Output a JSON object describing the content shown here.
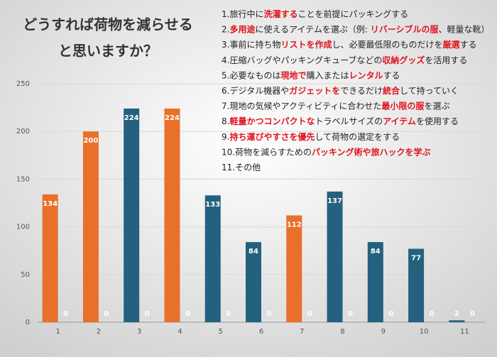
{
  "chart_data": {
    "type": "bar",
    "title": [
      "どうすれば荷物を減らせる",
      "と思いますか？"
    ],
    "categories": [
      "1",
      "2",
      "3",
      "4",
      "5",
      "6",
      "7",
      "8",
      "9",
      "10",
      "11"
    ],
    "series": [
      {
        "values": [
          134,
          200,
          224,
          224,
          133,
          84,
          112,
          137,
          84,
          77,
          2
        ],
        "colors": [
          "#e8702a",
          "#e8702a",
          "#24617f",
          "#e8702a",
          "#24617f",
          "#24617f",
          "#e8702a",
          "#24617f",
          "#24617f",
          "#24617f",
          "#24617f"
        ]
      },
      {
        "values": [
          0,
          0,
          0,
          0,
          0,
          0,
          0,
          0,
          0,
          0,
          0
        ],
        "color": "#24617f"
      }
    ],
    "ylim": [
      0,
      250
    ],
    "yticks": [
      0,
      50,
      100,
      150,
      200,
      250
    ],
    "grid": true,
    "highlight_color": "#e0141e",
    "options": [
      [
        {
          "text": "1.旅行中に"
        },
        {
          "text": "洗濯する",
          "highlight": true
        },
        {
          "text": "ことを前提にパッキングする"
        }
      ],
      [
        {
          "text": "2."
        },
        {
          "text": "多用途",
          "highlight": true
        },
        {
          "text": "に使えるアイテムを選ぶ（例: "
        },
        {
          "text": "リバーシブルの服",
          "highlight": true
        },
        {
          "text": "、軽量な靴）"
        }
      ],
      [
        {
          "text": "3.事前に持ち物"
        },
        {
          "text": "リストを作成",
          "highlight": true
        },
        {
          "text": "し、必要最低限のものだけを"
        },
        {
          "text": "厳選",
          "highlight": true
        },
        {
          "text": "する"
        }
      ],
      [
        {
          "text": "4.圧縮バッグやパッキングキューブなどの"
        },
        {
          "text": "収納グッズ",
          "highlight": true
        },
        {
          "text": "を活用する"
        }
      ],
      [
        {
          "text": "5.必要なものは"
        },
        {
          "text": "現地で",
          "highlight": true
        },
        {
          "text": "購入または"
        },
        {
          "text": "レンタル",
          "highlight": true
        },
        {
          "text": "する"
        }
      ],
      [
        {
          "text": "6.デジタル機器や"
        },
        {
          "text": "ガジェットを",
          "highlight": true
        },
        {
          "text": "できるだけ"
        },
        {
          "text": "統合",
          "highlight": true
        },
        {
          "text": "して持っていく"
        }
      ],
      [
        {
          "text": "7.現地の気候やアクティビティに合わせた"
        },
        {
          "text": "最小限の服",
          "highlight": true
        },
        {
          "text": "を選ぶ"
        }
      ],
      [
        {
          "text": "8."
        },
        {
          "text": "軽量かつコンパクトな",
          "highlight": true
        },
        {
          "text": "トラベルサイズの"
        },
        {
          "text": "アイテム",
          "highlight": true
        },
        {
          "text": "を使用する"
        }
      ],
      [
        {
          "text": "9."
        },
        {
          "text": "持ち運びやすさを優先",
          "highlight": true
        },
        {
          "text": "して荷物の選定をする"
        }
      ],
      [
        {
          "text": "10.荷物を減らすための"
        },
        {
          "text": "パッキング術や旅ハックを学ぶ",
          "highlight": true
        }
      ],
      [
        {
          "text": "11.その他"
        }
      ]
    ]
  }
}
